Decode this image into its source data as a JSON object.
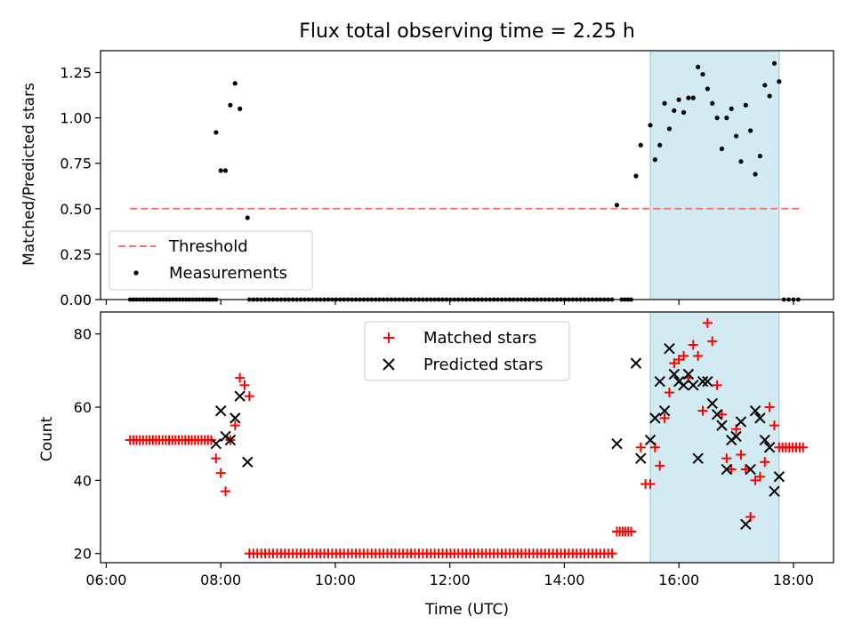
{
  "chart_data": [
    {
      "type": "scatter",
      "title": "Flux total observing time = 2.25 h",
      "xlabel": "",
      "ylabel": "Matched/Predicted stars",
      "ylim": [
        0.0,
        1.37
      ],
      "yticks": [
        "0.00",
        "0.25",
        "0.50",
        "0.75",
        "1.00",
        "1.25"
      ],
      "x_axis": "time of day (UTC), hours",
      "xlim": [
        5.9,
        18.7
      ],
      "shaded_interval": [
        "15:30",
        "17:45"
      ],
      "shaded_color": "#add8e6",
      "threshold": {
        "name": "Threshold",
        "y": 0.5,
        "x_range": [
          "06:25",
          "18:10"
        ],
        "color": "#ff7070",
        "style": "dashed"
      },
      "legend": {
        "position": "lower-left",
        "entries": [
          "Threshold",
          "Measurements"
        ]
      },
      "series": [
        {
          "name": "Measurements",
          "color": "#000000",
          "marker": "dot",
          "points": [
            [
              "07:55",
              0.92
            ],
            [
              "08:00",
              0.71
            ],
            [
              "08:05",
              0.71
            ],
            [
              "08:10",
              1.07
            ],
            [
              "08:15",
              1.19
            ],
            [
              "08:20",
              1.05
            ],
            [
              "08:28",
              0.45
            ],
            [
              "14:55",
              0.52
            ],
            [
              "15:15",
              0.68
            ],
            [
              "15:20",
              0.85
            ],
            [
              "15:30",
              0.96
            ],
            [
              "15:35",
              0.77
            ],
            [
              "15:40",
              0.85
            ],
            [
              "15:45",
              1.08
            ],
            [
              "15:50",
              0.94
            ],
            [
              "15:55",
              1.04
            ],
            [
              "16:00",
              1.1
            ],
            [
              "16:05",
              1.03
            ],
            [
              "16:10",
              1.11
            ],
            [
              "16:15",
              1.11
            ],
            [
              "16:20",
              1.28
            ],
            [
              "16:25",
              1.24
            ],
            [
              "16:30",
              1.16
            ],
            [
              "16:35",
              1.08
            ],
            [
              "16:40",
              1.0
            ],
            [
              "16:45",
              0.83
            ],
            [
              "16:50",
              1.0
            ],
            [
              "16:55",
              1.05
            ],
            [
              "17:00",
              0.9
            ],
            [
              "17:05",
              0.76
            ],
            [
              "17:10",
              1.07
            ],
            [
              "17:15",
              0.93
            ],
            [
              "17:20",
              0.69
            ],
            [
              "17:25",
              0.79
            ],
            [
              "17:30",
              1.18
            ],
            [
              "17:35",
              1.12
            ],
            [
              "17:40",
              1.3
            ],
            [
              "17:45",
              1.2
            ]
          ],
          "zero_value_runs": [
            {
              "from": "06:25",
              "to": "07:55",
              "count": 27,
              "y": 0
            },
            {
              "from": "08:30",
              "to": "14:50",
              "count": 93,
              "y": 0
            },
            {
              "from": "15:00",
              "to": "15:10",
              "count": 4,
              "y": 0
            },
            {
              "from": "17:50",
              "to": "18:05",
              "count": 4,
              "y": 0
            }
          ]
        }
      ]
    },
    {
      "type": "scatter",
      "title": "",
      "xlabel": "Time (UTC)",
      "ylabel": "Count",
      "ylim": [
        17.5,
        86
      ],
      "yticks": [
        "20",
        "40",
        "60",
        "80"
      ],
      "x_axis": "time of day (UTC), hours",
      "xlim": [
        5.9,
        18.7
      ],
      "xticks": [
        "06:00",
        "08:00",
        "10:00",
        "12:00",
        "14:00",
        "16:00",
        "18:00"
      ],
      "shaded_interval": [
        "15:30",
        "17:45"
      ],
      "shaded_color": "#add8e6",
      "legend": {
        "position": "upper-center",
        "entries": [
          "Matched stars",
          "Predicted stars"
        ]
      },
      "series": [
        {
          "name": "Matched stars",
          "color": "#ff0000",
          "marker": "plus",
          "points": [
            [
              "07:55",
              46
            ],
            [
              "08:00",
              42
            ],
            [
              "08:05",
              37
            ],
            [
              "08:10",
              51
            ],
            [
              "08:15",
              55
            ],
            [
              "08:20",
              68
            ],
            [
              "08:25",
              66
            ],
            [
              "08:30",
              63
            ],
            [
              "15:20",
              49
            ],
            [
              "15:25",
              39
            ],
            [
              "15:30",
              39
            ],
            [
              "15:35",
              49
            ],
            [
              "15:40",
              44
            ],
            [
              "15:45",
              57
            ],
            [
              "15:50",
              64
            ],
            [
              "15:55",
              72
            ],
            [
              "16:00",
              73
            ],
            [
              "16:05",
              74
            ],
            [
              "16:10",
              68
            ],
            [
              "16:15",
              77
            ],
            [
              "16:20",
              74
            ],
            [
              "16:25",
              59
            ],
            [
              "16:30",
              83
            ],
            [
              "16:35",
              78
            ],
            [
              "16:40",
              66
            ],
            [
              "16:45",
              58
            ],
            [
              "16:50",
              46
            ],
            [
              "16:55",
              43
            ],
            [
              "17:00",
              54
            ],
            [
              "17:05",
              47
            ],
            [
              "17:10",
              43
            ],
            [
              "17:15",
              30
            ],
            [
              "17:20",
              40
            ],
            [
              "17:25",
              41
            ],
            [
              "17:30",
              45
            ],
            [
              "17:35",
              60
            ],
            [
              "17:40",
              55
            ]
          ],
          "constant_runs": [
            {
              "from": "06:25",
              "to": "07:50",
              "count": 26,
              "y": 51
            },
            {
              "from": "08:30",
              "to": "14:50",
              "count": 93,
              "y": 20
            },
            {
              "from": "14:55",
              "to": "15:10",
              "count": 6,
              "y": 26
            },
            {
              "from": "17:45",
              "to": "18:10",
              "count": 8,
              "y": 49
            }
          ]
        },
        {
          "name": "Predicted stars",
          "color": "#000000",
          "marker": "cross",
          "points": [
            [
              "07:55",
              50
            ],
            [
              "08:00",
              59
            ],
            [
              "08:05",
              52
            ],
            [
              "08:10",
              51
            ],
            [
              "08:15",
              57
            ],
            [
              "08:20",
              63
            ],
            [
              "08:28",
              45
            ],
            [
              "14:55",
              50
            ],
            [
              "15:15",
              72
            ],
            [
              "15:20",
              46
            ],
            [
              "15:30",
              51
            ],
            [
              "15:35",
              57
            ],
            [
              "15:40",
              67
            ],
            [
              "15:45",
              59
            ],
            [
              "15:50",
              76
            ],
            [
              "15:55",
              69
            ],
            [
              "16:00",
              67
            ],
            [
              "16:05",
              66
            ],
            [
              "16:10",
              69
            ],
            [
              "16:15",
              66
            ],
            [
              "16:20",
              46
            ],
            [
              "16:25",
              67
            ],
            [
              "16:30",
              67
            ],
            [
              "16:35",
              61
            ],
            [
              "16:40",
              58
            ],
            [
              "16:45",
              55
            ],
            [
              "16:50",
              43
            ],
            [
              "16:55",
              51
            ],
            [
              "17:00",
              52
            ],
            [
              "17:05",
              56
            ],
            [
              "17:10",
              28
            ],
            [
              "17:15",
              43
            ],
            [
              "17:20",
              59
            ],
            [
              "17:25",
              57
            ],
            [
              "17:30",
              51
            ],
            [
              "17:35",
              49
            ],
            [
              "17:40",
              37
            ],
            [
              "17:45",
              41
            ]
          ]
        }
      ]
    }
  ]
}
